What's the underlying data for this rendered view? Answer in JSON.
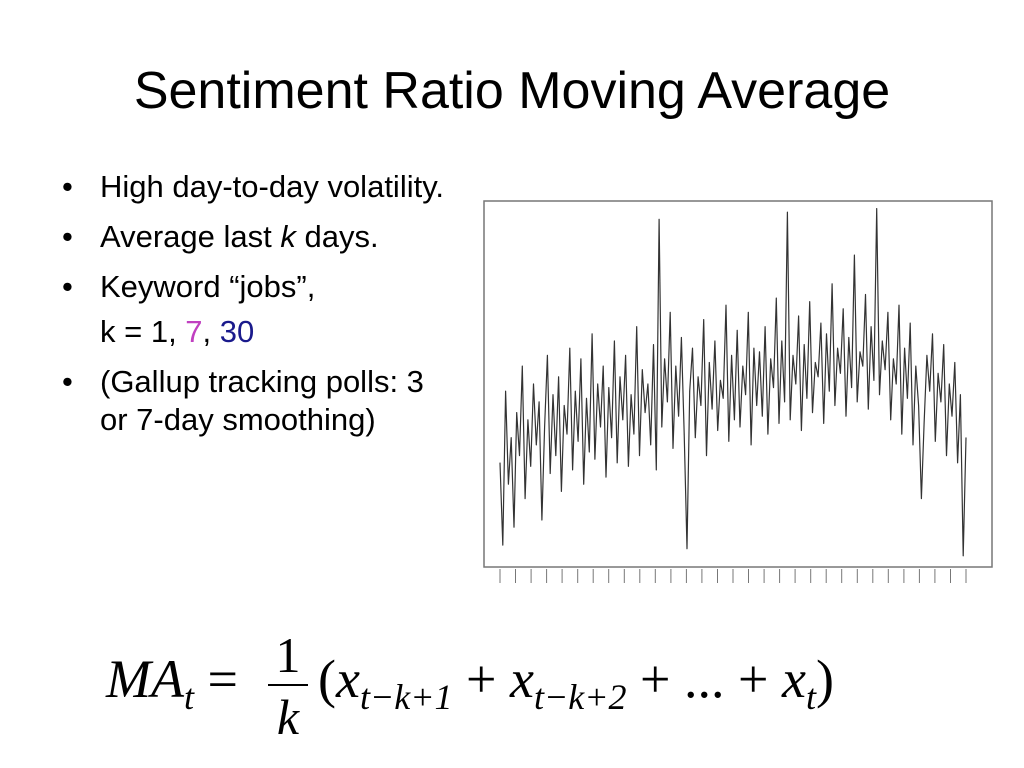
{
  "title": "Sentiment Ratio Moving Average",
  "bullets": {
    "b1": "High day-to-day volatility.",
    "b2_pre": "Average last ",
    "b2_k": "k",
    "b2_post": " days.",
    "b3": "Keyword “jobs”,",
    "b3_sub_pre": "k = 1, ",
    "b3_k7": "7",
    "b3_comma": ", ",
    "b3_k30": "30",
    "b4": "(Gallup tracking polls: 3 or 7-day smoothing)",
    "dot": "•"
  },
  "formula": {
    "lhs": "MA",
    "lhs_sub": "t",
    "equals": "=",
    "numerator": "1",
    "denominator": "k",
    "open_paren": "(",
    "x": "x",
    "sub1": "t−k+1",
    "plus": "+",
    "sub2": "t−k+2",
    "ellipsis": "...",
    "sub_t": "t",
    "close_paren": ")"
  },
  "colors": {
    "k7": "#c040c0",
    "k30": "#1a1a8c",
    "series": "#333333"
  },
  "chart_data": {
    "type": "line",
    "title": "",
    "xlabel": "",
    "ylabel": "",
    "grid": false,
    "legend": "none",
    "x_ticks": 31,
    "ylim": [
      0,
      1
    ],
    "series": [
      {
        "values": [
          0.28,
          0.05,
          0.48,
          0.22,
          0.35,
          0.1,
          0.42,
          0.3,
          0.55,
          0.18,
          0.4,
          0.27,
          0.5,
          0.33,
          0.45,
          0.12,
          0.38,
          0.58,
          0.25,
          0.47,
          0.3,
          0.52,
          0.2,
          0.44,
          0.36,
          0.6,
          0.26,
          0.48,
          0.34,
          0.57,
          0.22,
          0.46,
          0.31,
          0.64,
          0.29,
          0.5,
          0.38,
          0.55,
          0.24,
          0.49,
          0.35,
          0.62,
          0.28,
          0.52,
          0.4,
          0.58,
          0.27,
          0.47,
          0.36,
          0.66,
          0.3,
          0.54,
          0.42,
          0.5,
          0.33,
          0.61,
          0.26,
          0.96,
          0.38,
          0.57,
          0.45,
          0.7,
          0.32,
          0.55,
          0.41,
          0.63,
          0.36,
          0.04,
          0.48,
          0.6,
          0.35,
          0.52,
          0.44,
          0.68,
          0.3,
          0.56,
          0.43,
          0.62,
          0.37,
          0.51,
          0.46,
          0.72,
          0.34,
          0.58,
          0.4,
          0.65,
          0.38,
          0.55,
          0.47,
          0.7,
          0.33,
          0.6,
          0.44,
          0.59,
          0.41,
          0.66,
          0.36,
          0.57,
          0.49,
          0.74,
          0.39,
          0.62,
          0.45,
          0.98,
          0.4,
          0.58,
          0.5,
          0.69,
          0.37,
          0.61,
          0.46,
          0.73,
          0.42,
          0.56,
          0.52,
          0.67,
          0.39,
          0.64,
          0.48,
          0.78,
          0.44,
          0.6,
          0.53,
          0.71,
          0.41,
          0.63,
          0.49,
          0.86,
          0.45,
          0.59,
          0.55,
          0.75,
          0.43,
          0.66,
          0.51,
          0.99,
          0.47,
          0.62,
          0.54,
          0.7,
          0.4,
          0.57,
          0.5,
          0.72,
          0.36,
          0.6,
          0.46,
          0.67,
          0.33,
          0.55,
          0.44,
          0.18,
          0.39,
          0.58,
          0.48,
          0.64,
          0.34,
          0.53,
          0.45,
          0.61,
          0.3,
          0.5,
          0.41,
          0.56,
          0.28,
          0.47,
          0.02,
          0.35
        ]
      }
    ]
  }
}
